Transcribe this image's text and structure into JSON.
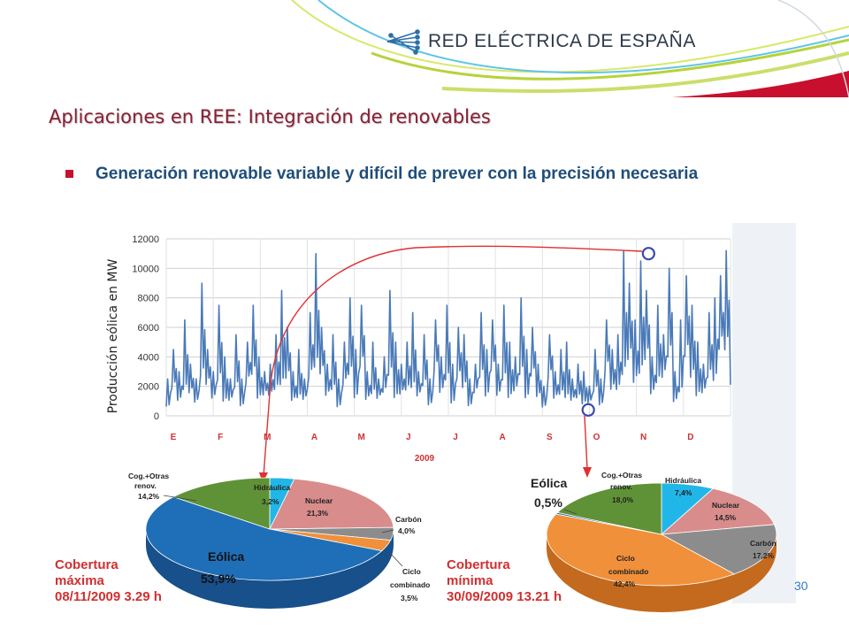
{
  "header": {
    "logo_text": "RED ELÉCTRICA DE ESPAÑA",
    "logo_icon": "network-icon"
  },
  "title": "Aplicaciones en REE: Integración de renovables",
  "bullet": {
    "text": "Generación renovable variable y difícil de prever con la precisión necesaria"
  },
  "page_number": "30",
  "colors": {
    "title": "#8a1e33",
    "bullet_text": "#1f4e79",
    "bullet_mark": "#c8102e",
    "series": "#4a7ab8",
    "annotation": "#e03030",
    "marker": "#3a4aa8",
    "month_label": "#d03030",
    "eolica": "#1f6fb8",
    "cog": "#5f9236",
    "hidraulica": "#21b6e8",
    "nuclear": "#d98c8c",
    "carbon": "#8c8c8c",
    "ciclo": "#f0903a"
  },
  "chart_data": [
    {
      "type": "line",
      "ylabel": "Producción eólica en MW",
      "xlabel": "2009",
      "yticks": [
        "12000",
        "10000",
        "8000",
        "6000",
        "4000",
        "2000",
        "0"
      ],
      "ylim": [
        0,
        12000
      ],
      "months": [
        "E",
        "F",
        "M",
        "A",
        "M",
        "J",
        "J",
        "A",
        "S",
        "O",
        "N",
        "D"
      ],
      "grid": true,
      "series": [
        {
          "daily_peaks": [
            2500,
            4500,
            3000,
            6500,
            3500,
            2500,
            9000,
            4500,
            3000,
            7500,
            4000,
            2500,
            5500,
            2500,
            5000,
            7500,
            4000,
            3000,
            3500,
            5500,
            8500,
            6000,
            3000,
            4500,
            2500,
            7000,
            11000,
            6000,
            3500,
            5500,
            2500,
            5000,
            8000,
            4500,
            7500,
            3000,
            5000,
            2500,
            4000,
            8500,
            5000,
            3500,
            5000,
            7000,
            3000,
            5500,
            2500,
            6500,
            4000,
            7500,
            3500,
            6000,
            5500,
            2500,
            3500,
            7000,
            4500,
            6500,
            3500,
            7500,
            5000,
            4000,
            8000,
            4500,
            6000,
            3500,
            2000,
            5500,
            3000,
            4500,
            5000,
            2500,
            3500,
            3000,
            2000,
            4500,
            2500,
            6500,
            4500,
            5500,
            11200,
            9000,
            6500,
            10500,
            8500,
            4000,
            7500,
            5500,
            10000,
            3000,
            6500,
            9500,
            7500,
            5000,
            3500,
            7000,
            8000,
            9500,
            11200,
            6500
          ]
        }
      ],
      "markers": [
        {
          "x": "08/11/2009",
          "y": 11000
        },
        {
          "x": "30/09/2009",
          "y": 400
        }
      ]
    },
    {
      "type": "pie",
      "title": "Cobertura máxima 08/11/2009 3.29 h",
      "slices": [
        {
          "label": "Eólica",
          "value": 53.9,
          "text": "53,9%"
        },
        {
          "label": "Cog.+Otras renov.",
          "value": 14.2,
          "text": "14,2%"
        },
        {
          "label": "Hidráulica",
          "value": 3.2,
          "text": "3,2%"
        },
        {
          "label": "Nuclear",
          "value": 21.3,
          "text": "21,3%"
        },
        {
          "label": "Carbón",
          "value": 4.0,
          "text": "4,0%"
        },
        {
          "label": "Ciclo combinado",
          "value": 3.5,
          "text": "3,5%"
        }
      ]
    },
    {
      "type": "pie",
      "title": "Cobertura mínima 30/09/2009 13.21 h",
      "slices": [
        {
          "label": "Eólica",
          "value": 0.5,
          "text": "0,5%"
        },
        {
          "label": "Cog.+Otras renov.",
          "value": 18.0,
          "text": "18,0%"
        },
        {
          "label": "Hidráulica",
          "value": 7.4,
          "text": "7,4%"
        },
        {
          "label": "Nuclear",
          "value": 14.5,
          "text": "14,5%"
        },
        {
          "label": "Carbón",
          "value": 17.2,
          "text": "17,2%"
        },
        {
          "label": "Ciclo combinado",
          "value": 42.4,
          "text": "42,4%"
        }
      ]
    }
  ],
  "labels": {
    "max_title": [
      "Cobertura",
      "máxima",
      "08/11/2009 3.29 h"
    ],
    "min_title": [
      "Cobertura",
      "mínima",
      "30/09/2009 13.21 h"
    ],
    "pie1": {
      "eolica_name": "Eólica",
      "eolica_val": "53,9%",
      "cog_name1": "Cog.+Otras",
      "cog_name2": "renov.",
      "cog_val": "14,2%",
      "hid_name": "Hidráulica",
      "hid_val": "3,2%",
      "nuc_name": "Nuclear",
      "nuc_val": "21,3%",
      "car_name": "Carbón",
      "car_val": "4,0%",
      "cic_name1": "Ciclo",
      "cic_name2": "combinado",
      "cic_val": "3,5%"
    },
    "pie2": {
      "eolica_name": "Eólica",
      "eolica_val": "0,5%",
      "cog_name1": "Cog.+Otras",
      "cog_name2": "renov.",
      "cog_val": "18,0%",
      "hid_name": "Hidráulica",
      "hid_val": "7,4%",
      "nuc_name": "Nuclear",
      "nuc_val": "14,5%",
      "car_name": "Carbón",
      "car_val": "17,2%",
      "cic_name1": "Ciclo",
      "cic_name2": "combinado",
      "cic_val": "42,4%"
    }
  }
}
